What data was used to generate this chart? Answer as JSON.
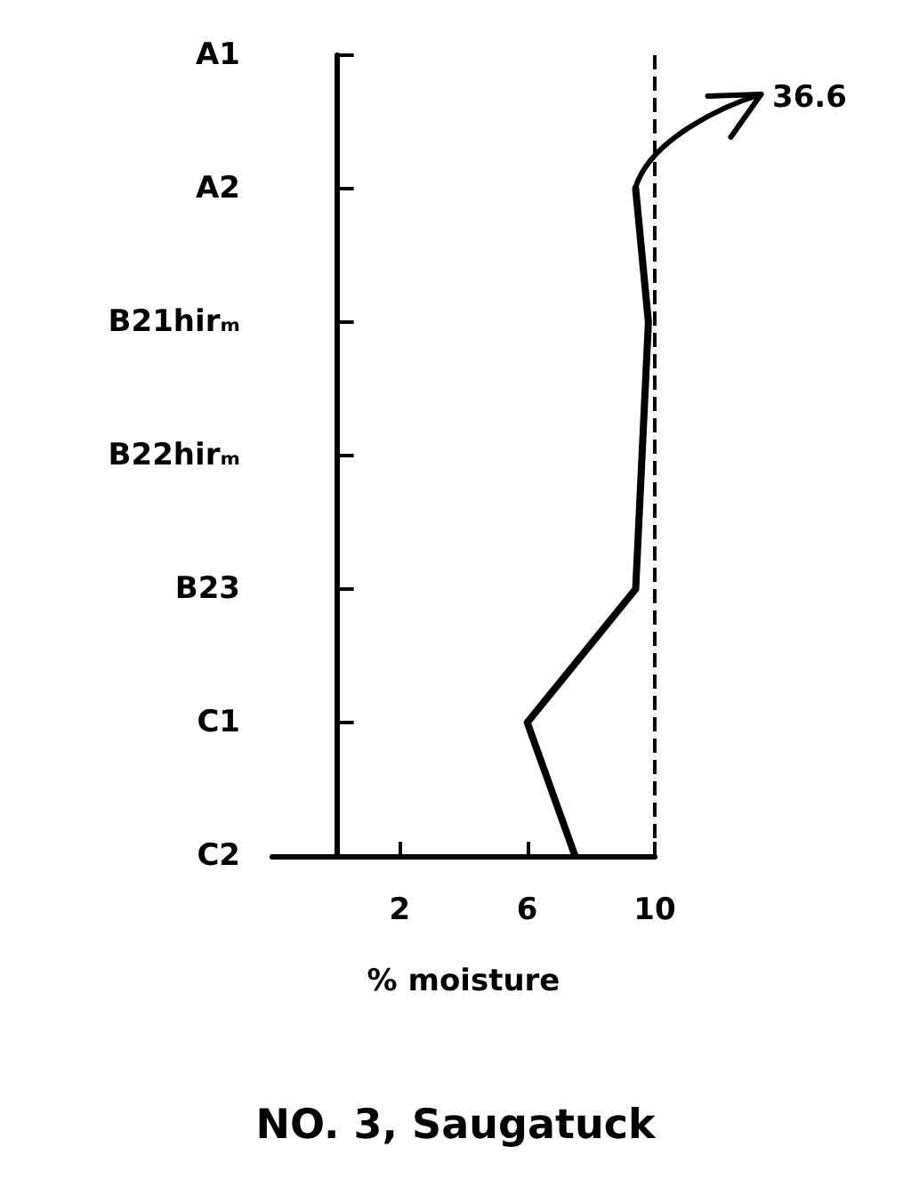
{
  "chart_data": {
    "type": "line",
    "orientation": "horizontal",
    "title": "NO. 3, Saugatuck",
    "xlabel": "% moisture",
    "categories": [
      "A1",
      "A2",
      "B21hirₘ",
      "B22hirₘ",
      "B23",
      "C1",
      "C2"
    ],
    "series": [
      {
        "color": "#000000",
        "values": [
          null,
          9.4,
          9.8,
          9.6,
          9.4,
          6.0,
          7.5
        ]
      }
    ],
    "xlim": [
      -2,
      10
    ],
    "xticks": [
      2,
      6,
      10
    ],
    "ref_lines": [
      {
        "axis": "x",
        "value": 10,
        "line_style": "dashed",
        "color": "#000000"
      }
    ],
    "annotations": [
      "36.6"
    ],
    "marker": "none",
    "line_style": "solid",
    "grid": false
  }
}
